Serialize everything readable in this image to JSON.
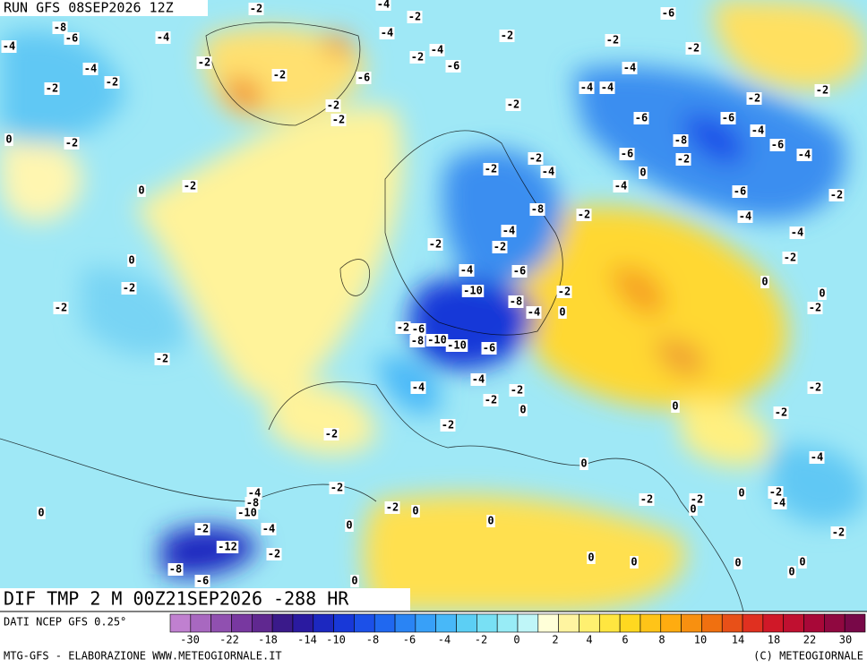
{
  "header": {
    "run": "RUN GFS 08SEP2026 12Z",
    "field": "DIF TMP 2 M 00Z21SEP2026 -288 HR"
  },
  "footer": {
    "source": "DATI NCEP GFS 0.25°",
    "credit": "MTG-GFS - ELABORAZIONE WWW.METEOGIORNALE.IT",
    "copyright": "(C) METEOGIORNALE"
  },
  "legend": {
    "colors": [
      "#c080d0",
      "#a868c0",
      "#9050b0",
      "#7838a0",
      "#602890",
      "#3a1a8a",
      "#2a1aa0",
      "#1c28c0",
      "#1838d8",
      "#1c50e8",
      "#2068f0",
      "#2a84f4",
      "#38a0f8",
      "#48b8f8",
      "#5ccff4",
      "#78e0f4",
      "#98ecf6",
      "#bff6f8",
      "#ffffd8",
      "#fff4a0",
      "#fff070",
      "#ffe640",
      "#ffd820",
      "#ffc418",
      "#ffac10",
      "#f89010",
      "#f07010",
      "#e85018",
      "#e03020",
      "#d01828",
      "#c01030",
      "#a80838",
      "#900840",
      "#780848"
    ],
    "ticks": [
      -30,
      -22,
      -18,
      -14,
      -10,
      -8,
      -6,
      -4,
      -2,
      0,
      2,
      4,
      6,
      8,
      10,
      14,
      18,
      22,
      30
    ]
  },
  "map": {
    "labels": [
      -2,
      -4,
      -2,
      -6,
      -8,
      -6,
      -4,
      -4,
      -2,
      -2,
      -2,
      -4,
      -2,
      -4,
      -2,
      -2,
      -4,
      -6,
      -6,
      -4,
      -2,
      -2,
      -4,
      -4,
      -2,
      -2,
      -2,
      -2,
      -2,
      -6,
      -6,
      -4,
      -8,
      -6,
      0,
      -2,
      -6,
      -2,
      -4,
      -2,
      -2,
      -4,
      0,
      0,
      -2,
      -4,
      -6,
      -2,
      -8,
      -2,
      -4,
      -4,
      -4,
      -2,
      -2,
      -2,
      0,
      -2,
      -4,
      -6,
      -10,
      0,
      -2,
      0,
      -8,
      -2,
      -2,
      -4,
      0,
      -2,
      -6,
      -8,
      -10,
      -10,
      -6,
      -2,
      -4,
      -4,
      -2,
      -2,
      -2,
      0,
      0,
      -2,
      -2,
      -2,
      -4,
      0,
      -4,
      -2,
      -8,
      -10,
      -2,
      -2,
      0,
      -2,
      -4,
      0,
      -2,
      0,
      0,
      -4,
      -2,
      0,
      0,
      -12,
      -2,
      -2,
      -8,
      -6,
      0,
      0,
      0,
      0,
      0,
      0
    ]
  }
}
